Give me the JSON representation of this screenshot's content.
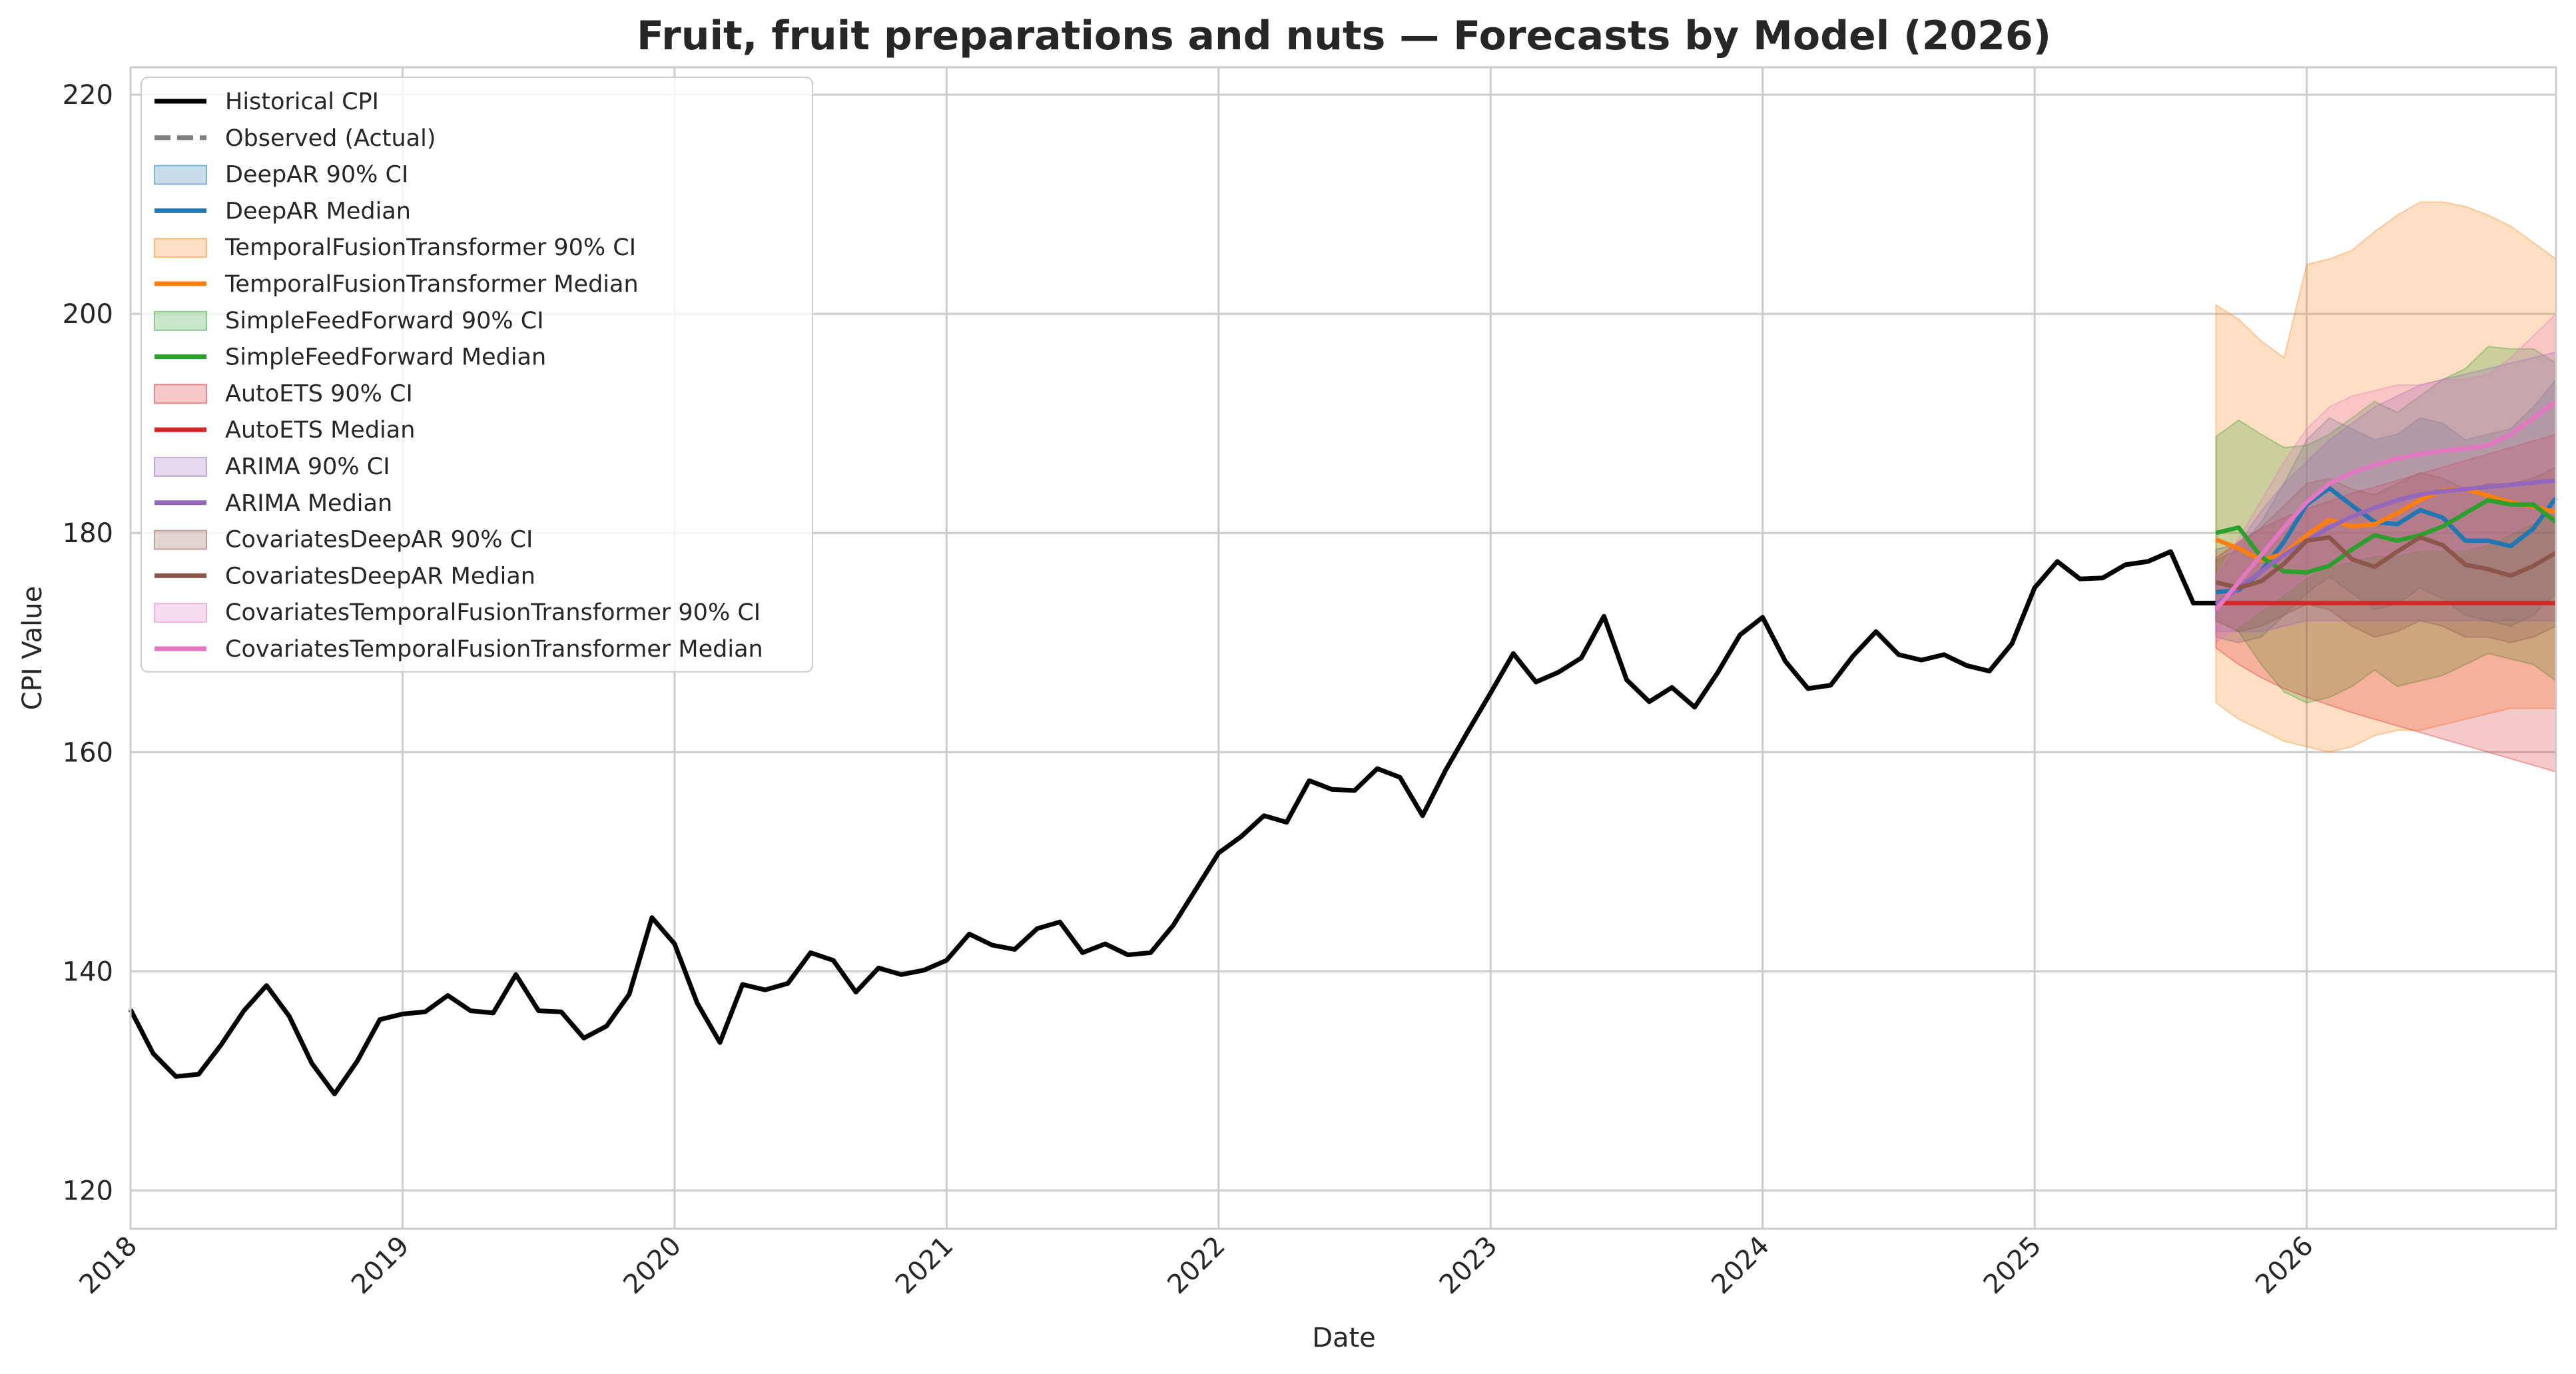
{
  "chart_data": {
    "type": "line",
    "title": "Fruit, fruit preparations and nuts — Forecasts by Model (2026)",
    "xlabel": "Date",
    "ylabel": "CPI Value",
    "xlim": [
      "2018-01",
      "2026-12"
    ],
    "ylim": [
      116.5,
      222.5
    ],
    "x_ticks": [
      "2018",
      "2019",
      "2020",
      "2021",
      "2022",
      "2023",
      "2024",
      "2025",
      "2026"
    ],
    "y_ticks": [
      120,
      140,
      160,
      180,
      200,
      220
    ],
    "grid": true,
    "legend_position": "top-left",
    "historical": {
      "name": "Historical CPI",
      "color": "#000000",
      "start": "2018-01",
      "values": [
        136.5,
        132.5,
        130.4,
        130.6,
        133.3,
        136.4,
        138.7,
        135.9,
        131.6,
        128.8,
        131.8,
        135.6,
        136.1,
        136.3,
        137.8,
        136.4,
        136.2,
        139.7,
        136.4,
        136.3,
        133.9,
        135.0,
        137.9,
        144.9,
        142.5,
        137.1,
        133.5,
        138.8,
        138.3,
        138.9,
        141.7,
        141.0,
        138.1,
        140.3,
        139.7,
        140.1,
        141.0,
        143.4,
        142.4,
        142.0,
        143.9,
        144.5,
        141.7,
        142.5,
        141.5,
        141.7,
        144.2,
        147.5,
        150.8,
        152.3,
        154.2,
        153.6,
        157.4,
        156.6,
        156.5,
        158.5,
        157.7,
        154.2,
        158.3,
        161.9,
        165.4,
        169.0,
        166.4,
        167.3,
        168.6,
        172.4,
        166.6,
        164.6,
        165.9,
        164.1,
        167.2,
        170.7,
        172.3,
        168.3,
        165.8,
        166.1,
        168.8,
        171.0,
        168.9,
        168.4,
        168.9,
        167.9,
        167.4,
        169.9,
        175.0,
        177.4,
        175.8,
        175.9,
        177.1,
        177.4,
        178.3,
        173.6,
        173.6
      ]
    },
    "observed": {
      "name": "Observed (Actual)",
      "color": "#808080",
      "values": []
    },
    "forecast_start": "2025-09",
    "series": [
      {
        "name": "DeepAR",
        "median_label": "DeepAR Median",
        "ci_label": "DeepAR 90% CI",
        "color": "#1f77b4",
        "median": [
          174.6,
          174.8,
          176.5,
          179.2,
          182.6,
          184.1,
          182.5,
          181.0,
          180.8,
          182.1,
          181.4,
          179.3,
          179.3,
          178.8,
          180.4,
          183.2
        ],
        "lower": [
          170.5,
          170.0,
          170.5,
          172.5,
          174.5,
          176.0,
          174.5,
          173.0,
          173.5,
          175.0,
          174.0,
          172.5,
          172.0,
          171.5,
          172.5,
          174.5
        ],
        "upper": [
          177.5,
          178.5,
          181.0,
          184.5,
          188.5,
          190.5,
          189.5,
          188.5,
          189.0,
          190.5,
          190.0,
          188.5,
          189.0,
          189.5,
          191.5,
          194.0
        ]
      },
      {
        "name": "TemporalFusionTransformer",
        "median_label": "TemporalFusionTransformer Median",
        "ci_label": "TemporalFusionTransformer 90% CI",
        "color": "#ff7f0e",
        "median": [
          179.4,
          178.6,
          177.5,
          178.1,
          179.8,
          181.2,
          180.6,
          180.8,
          181.8,
          183.0,
          183.9,
          184.0,
          183.4,
          182.8,
          182.4,
          181.9
        ],
        "lower": [
          164.5,
          163.0,
          162.0,
          161.0,
          160.5,
          160.0,
          160.5,
          161.5,
          162.0,
          162.0,
          162.5,
          163.0,
          163.5,
          164.0,
          164.0,
          164.0
        ],
        "upper": [
          200.8,
          199.5,
          197.5,
          196.0,
          204.5,
          205.0,
          205.8,
          207.5,
          209.0,
          210.2,
          210.2,
          209.8,
          209.0,
          208.0,
          206.5,
          205.0
        ]
      },
      {
        "name": "SimpleFeedForward",
        "median_label": "SimpleFeedForward Median",
        "ci_label": "SimpleFeedForward 90% CI",
        "color": "#2ca02c",
        "median": [
          180.0,
          180.5,
          177.8,
          176.5,
          176.4,
          177.0,
          178.5,
          179.8,
          179.3,
          179.8,
          180.6,
          181.8,
          183.0,
          182.6,
          182.6,
          181.0
        ],
        "lower": [
          172.0,
          171.0,
          168.0,
          165.5,
          164.5,
          165.0,
          166.0,
          167.5,
          166.0,
          166.5,
          167.0,
          168.0,
          169.0,
          168.5,
          168.0,
          166.5
        ],
        "upper": [
          188.8,
          190.3,
          189.0,
          187.8,
          188.0,
          189.0,
          190.5,
          192.0,
          191.0,
          192.5,
          194.0,
          195.0,
          197.0,
          196.8,
          196.8,
          195.5
        ]
      },
      {
        "name": "AutoETS",
        "median_label": "AutoETS Median",
        "ci_label": "AutoETS 90% CI",
        "color": "#d62728",
        "median": [
          173.6,
          173.6,
          173.6,
          173.6,
          173.6,
          173.6,
          173.6,
          173.6,
          173.6,
          173.6,
          173.6,
          173.6,
          173.6,
          173.6,
          173.6,
          173.6
        ],
        "lower": [
          169.5,
          168.0,
          166.8,
          165.8,
          165.0,
          164.3,
          163.6,
          163.0,
          162.4,
          161.8,
          161.2,
          160.6,
          160.0,
          159.4,
          158.8,
          158.2
        ],
        "upper": [
          177.7,
          179.2,
          180.4,
          181.4,
          182.2,
          182.9,
          183.6,
          184.2,
          184.8,
          185.4,
          186.0,
          186.6,
          187.2,
          187.8,
          188.4,
          189.0
        ]
      },
      {
        "name": "ARIMA",
        "median_label": "ARIMA Median",
        "ci_label": "ARIMA 90% CI",
        "color": "#9467bd",
        "median": [
          173.5,
          175.0,
          176.5,
          178.0,
          179.3,
          180.5,
          181.5,
          182.3,
          183.0,
          183.5,
          183.8,
          184.0,
          184.2,
          184.4,
          184.6,
          184.8
        ],
        "lower": [
          171.0,
          171.0,
          171.0,
          171.5,
          172.0,
          172.0,
          172.0,
          172.0,
          172.0,
          172.0,
          172.0,
          172.0,
          172.0,
          172.0,
          172.0,
          172.0
        ],
        "upper": [
          176.0,
          179.0,
          182.0,
          184.5,
          186.5,
          188.5,
          190.0,
          191.5,
          192.5,
          193.5,
          194.0,
          194.5,
          195.0,
          195.5,
          196.0,
          196.5
        ]
      },
      {
        "name": "CovariatesDeepAR",
        "median_label": "CovariatesDeepAR Median",
        "ci_label": "CovariatesDeepAR 90% CI",
        "color": "#8c564b",
        "median": [
          175.5,
          175.0,
          175.6,
          177.2,
          179.3,
          179.6,
          177.6,
          176.9,
          178.3,
          179.6,
          178.9,
          177.1,
          176.7,
          176.1,
          177.0,
          178.2
        ],
        "lower": [
          172.0,
          171.0,
          171.5,
          172.5,
          173.5,
          173.0,
          171.5,
          170.5,
          171.0,
          172.0,
          171.5,
          170.5,
          170.5,
          170.0,
          170.5,
          171.5
        ],
        "upper": [
          178.5,
          179.0,
          180.5,
          182.5,
          184.5,
          185.0,
          184.0,
          183.5,
          184.5,
          185.5,
          185.0,
          184.0,
          184.5,
          184.5,
          185.0,
          186.0
        ]
      },
      {
        "name": "CovariatesTemporalFusionTransformer",
        "median_label": "CovariatesTemporalFusionTransformer Median",
        "ci_label": "CovariatesTemporalFusionTransformer 90% CI",
        "color": "#e377c2",
        "median": [
          173.0,
          175.5,
          178.0,
          180.5,
          182.8,
          184.5,
          185.5,
          186.2,
          186.8,
          187.2,
          187.5,
          187.7,
          188.0,
          189.0,
          190.5,
          192.0
        ],
        "lower": [
          170.0,
          171.5,
          173.0,
          174.5,
          176.0,
          177.0,
          177.5,
          178.0,
          178.0,
          178.5,
          178.5,
          178.5,
          179.0,
          180.0,
          181.0,
          182.0
        ],
        "upper": [
          176.0,
          179.5,
          183.0,
          186.5,
          189.5,
          191.5,
          192.5,
          193.0,
          193.5,
          193.5,
          194.0,
          194.0,
          194.5,
          196.0,
          198.0,
          200.0
        ]
      }
    ]
  }
}
